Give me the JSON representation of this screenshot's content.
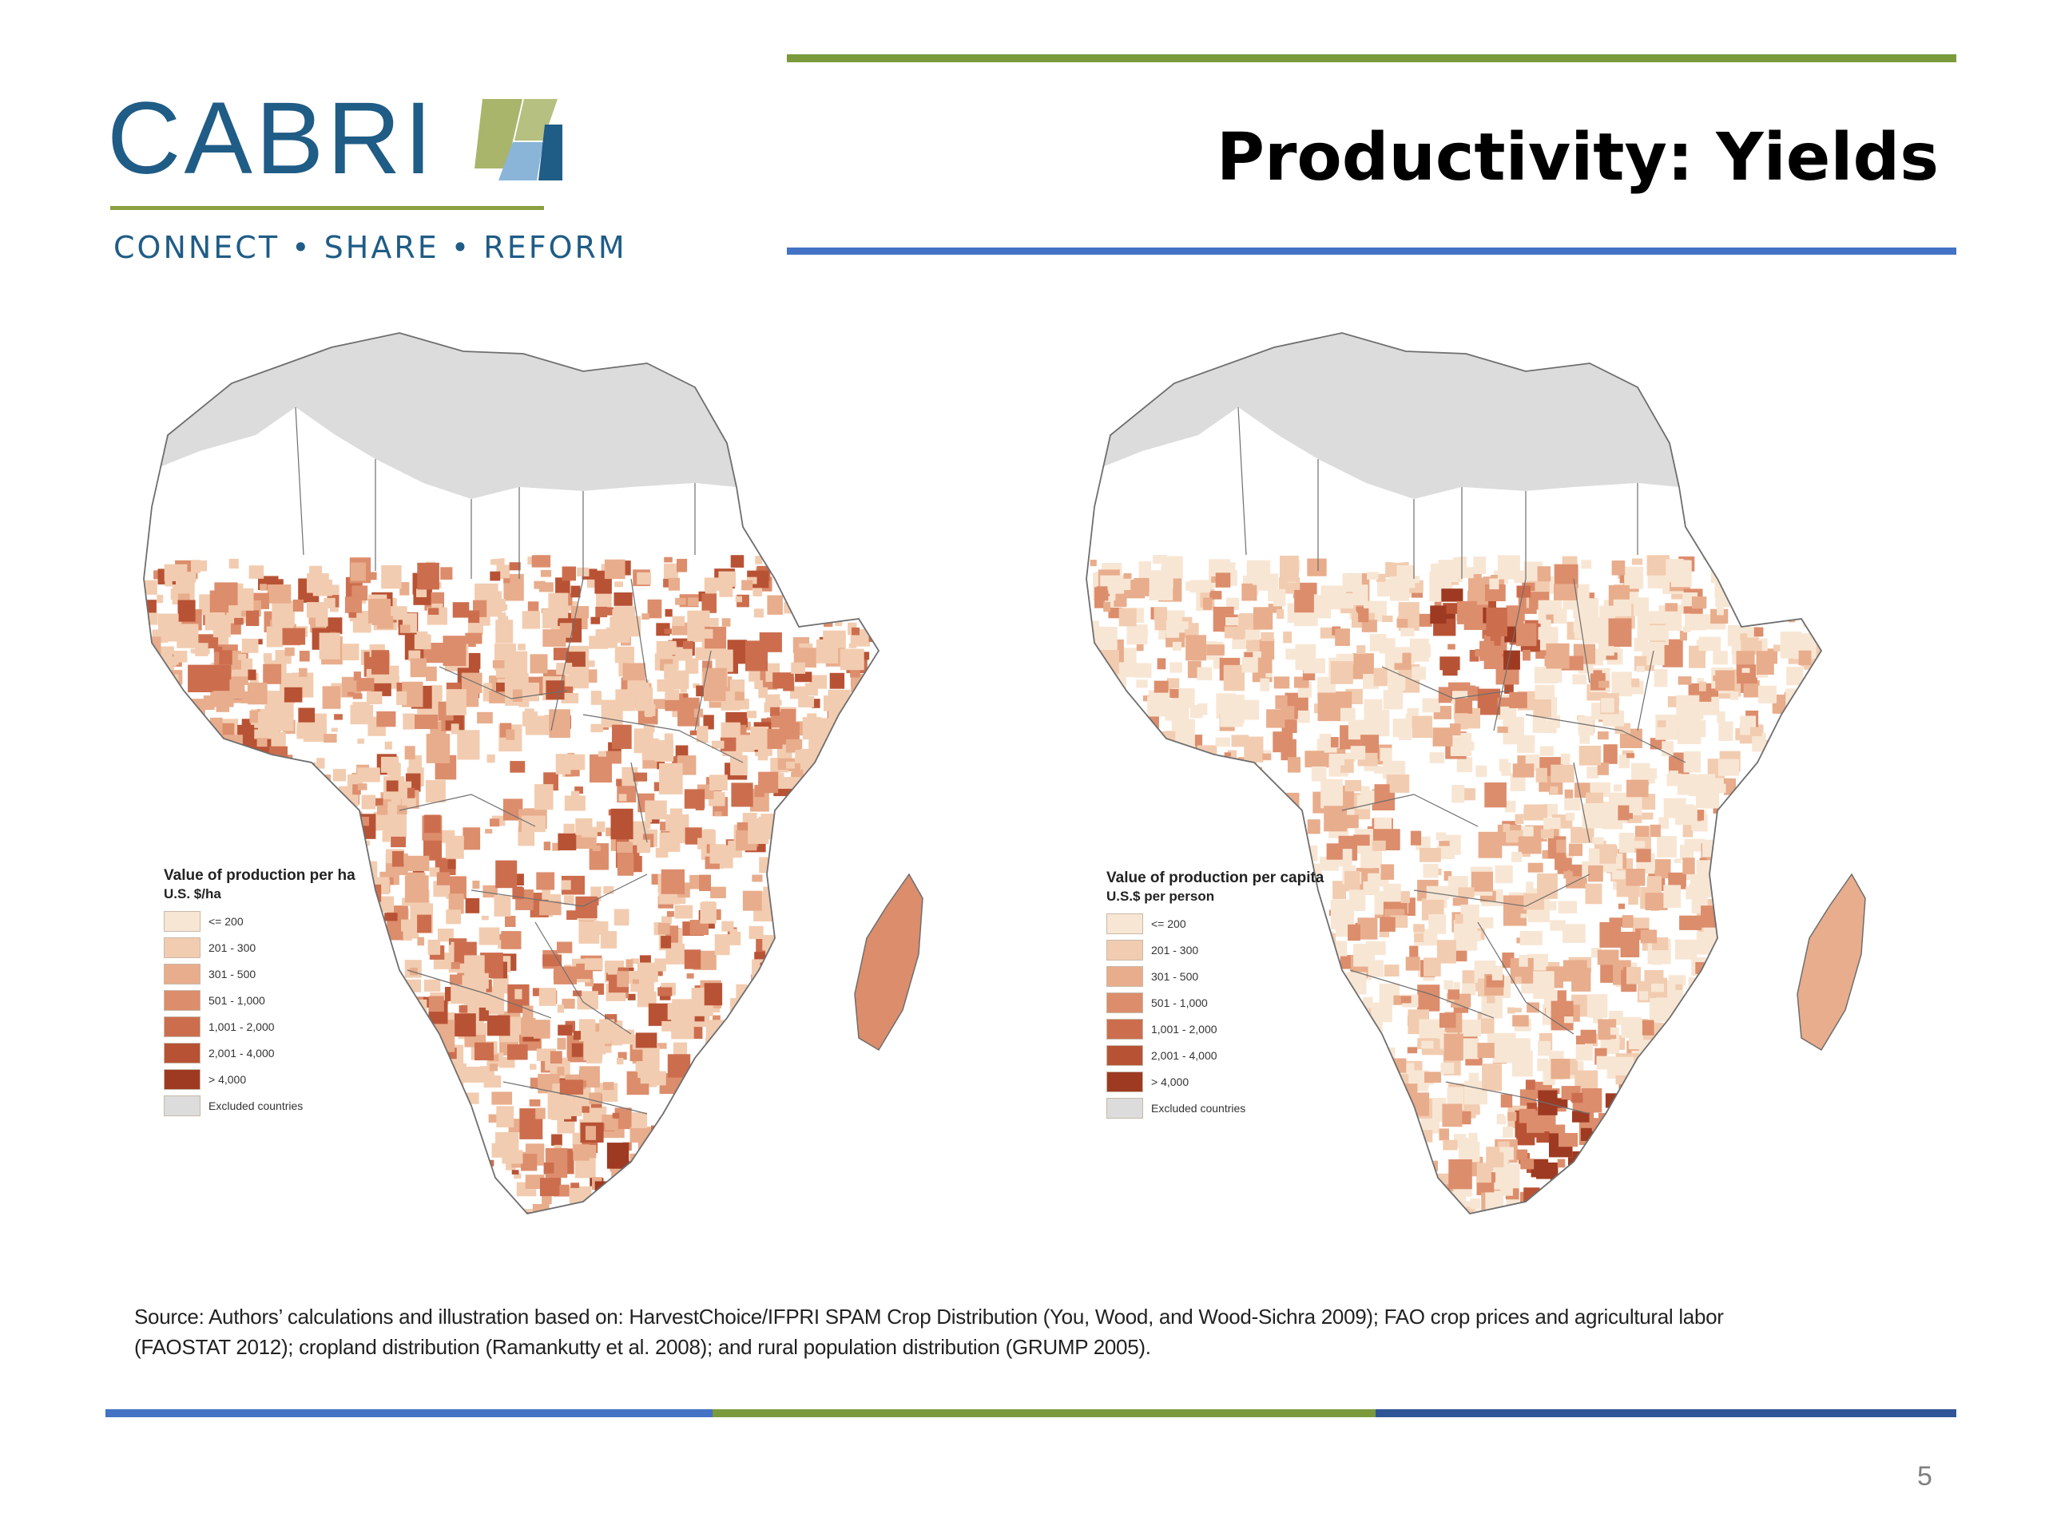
{
  "logo": {
    "wordmark": "CABRI",
    "tagline": "CONNECT • SHARE • REFORM",
    "colors": {
      "text": "#1f5c86",
      "rule": "#8aa03e",
      "mark_green": "#a8b56b",
      "mark_blue": "#1f5c86",
      "mark_light": "#8ab4d8"
    }
  },
  "slide": {
    "title": "Productivity: Yields",
    "page_number": "5",
    "accent_colors": {
      "green": "#7b9a3c",
      "blue": "#4472c4",
      "navy": "#2f5597"
    }
  },
  "map_colors": {
    "excluded": "#dcdcdc",
    "no_data": "#ffffff",
    "border": "#6e6e6e",
    "classes": [
      "#f8e6d4",
      "#f2ccb0",
      "#e8ad8c",
      "#dc8d6c",
      "#cc6e4e",
      "#b85234",
      "#9e3a22"
    ]
  },
  "maps": [
    {
      "legend_title": "Value of production per ha",
      "legend_unit": "U.S. $/ha",
      "legend_items": [
        "<= 200",
        "201 - 300",
        "301 - 500",
        "501 - 1,000",
        "1,001 - 2,000",
        "2,001 - 4,000",
        "> 4,000",
        "Excluded countries"
      ]
    },
    {
      "legend_title": "Value of production per capita",
      "legend_unit": "U.S.$ per person",
      "legend_items": [
        "<= 200",
        "201 - 300",
        "301 - 500",
        "501 - 1,000",
        "1,001 - 2,000",
        "2,001 - 4,000",
        "> 4,000",
        "Excluded countries"
      ]
    }
  ],
  "source": "Source: Authors’ calculations and illustration based on: HarvestChoice/IFPRI SPAM Crop Distribution (You, Wood, and Wood-Sichra 2009); FAO crop prices and agricultural labor (FAOSTAT 2012); cropland distribution (Ramankutty et al. 2008); and rural population distribution (GRUMP 2005)."
}
